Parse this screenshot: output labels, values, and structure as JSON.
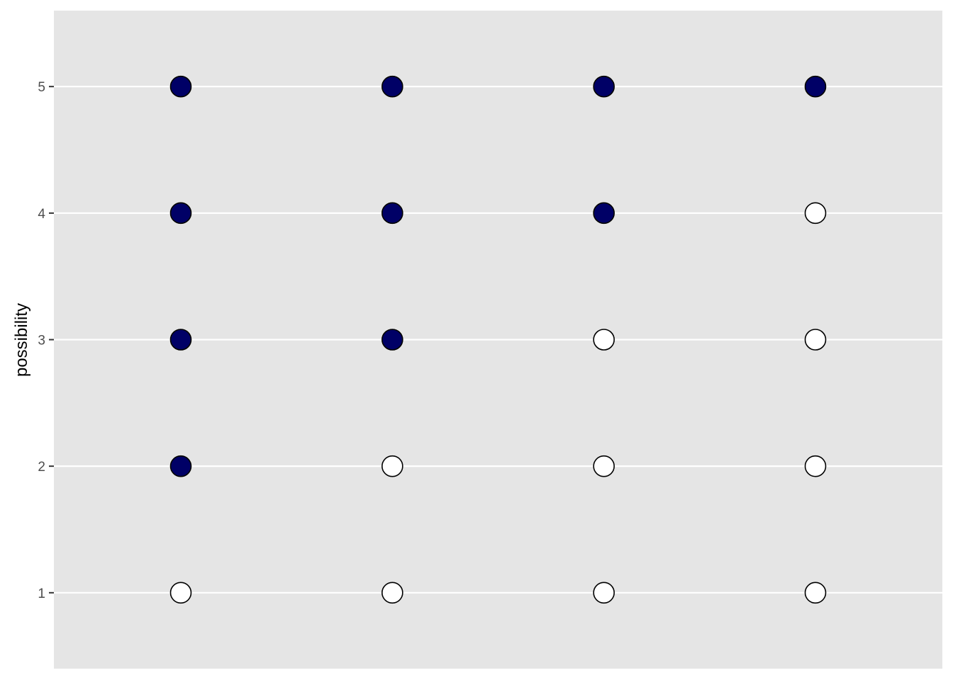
{
  "chart_data": {
    "type": "scatter",
    "title": "",
    "xlabel": "",
    "ylabel": "possibility",
    "x_categories": [
      "",
      "",
      "",
      ""
    ],
    "ylim": [
      0.4,
      5.6
    ],
    "y_ticks": [
      1,
      2,
      3,
      4,
      5
    ],
    "grid": "horizontal major only",
    "legend": "none",
    "colors": {
      "panel": "#e5e5e5",
      "grid": "#ffffff",
      "filled": "#000066",
      "empty": "#ffffff",
      "outline": "#000000"
    },
    "points": [
      {
        "x": 1,
        "y": 1,
        "filled": false
      },
      {
        "x": 1,
        "y": 2,
        "filled": true
      },
      {
        "x": 1,
        "y": 3,
        "filled": true
      },
      {
        "x": 1,
        "y": 4,
        "filled": true
      },
      {
        "x": 1,
        "y": 5,
        "filled": true
      },
      {
        "x": 2,
        "y": 1,
        "filled": false
      },
      {
        "x": 2,
        "y": 2,
        "filled": false
      },
      {
        "x": 2,
        "y": 3,
        "filled": true
      },
      {
        "x": 2,
        "y": 4,
        "filled": true
      },
      {
        "x": 2,
        "y": 5,
        "filled": true
      },
      {
        "x": 3,
        "y": 1,
        "filled": false
      },
      {
        "x": 3,
        "y": 2,
        "filled": false
      },
      {
        "x": 3,
        "y": 3,
        "filled": false
      },
      {
        "x": 3,
        "y": 4,
        "filled": true
      },
      {
        "x": 3,
        "y": 5,
        "filled": true
      },
      {
        "x": 4,
        "y": 1,
        "filled": false
      },
      {
        "x": 4,
        "y": 2,
        "filled": false
      },
      {
        "x": 4,
        "y": 3,
        "filled": false
      },
      {
        "x": 4,
        "y": 4,
        "filled": false
      },
      {
        "x": 4,
        "y": 5,
        "filled": true
      }
    ]
  }
}
